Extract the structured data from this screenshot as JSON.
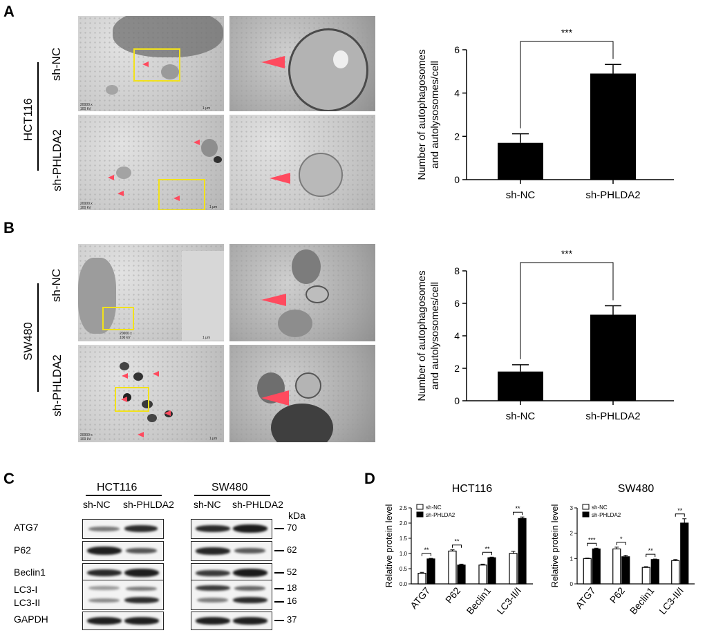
{
  "panels": {
    "a": "A",
    "b": "B",
    "c": "C",
    "d": "D"
  },
  "panel_a": {
    "cell_line": "HCT116",
    "row_labels": [
      "sh-NC",
      "sh-PHLDA2"
    ],
    "scale_text": [
      "20000 x\n100 kV",
      "1 μm"
    ],
    "chart_data": {
      "type": "bar",
      "categories": [
        "sh-NC",
        "sh-PHLDA2"
      ],
      "values": [
        1.7,
        4.9
      ],
      "errors": [
        0.42,
        0.42
      ],
      "ylabel": "Number of autophagosomes\nand autolysosomes/cell",
      "ylabel_lines": [
        "Number of autophagosomes",
        "and autolysosomes/cell"
      ],
      "ylim": [
        0,
        6
      ],
      "yticks": [
        0,
        2,
        4,
        6
      ],
      "significance": "***",
      "bar_color": "#000000"
    }
  },
  "panel_b": {
    "cell_line": "SW480",
    "row_labels": [
      "sh-NC",
      "sh-PHLDA2"
    ],
    "scale_text": [
      "20000 x\n100 kV",
      "1 μm"
    ],
    "chart_data": {
      "type": "bar",
      "categories": [
        "sh-NC",
        "sh-PHLDA2"
      ],
      "values": [
        1.8,
        5.3
      ],
      "errors": [
        0.42,
        0.55
      ],
      "ylabel": "Number of autophagosomes\nand autolysosomes/cell",
      "ylabel_lines": [
        "Number of autophagosomes",
        "and autolysosomes/cell"
      ],
      "ylim": [
        0,
        8
      ],
      "yticks": [
        0,
        2,
        4,
        6,
        8
      ],
      "significance": "***",
      "bar_color": "#000000"
    }
  },
  "panel_c": {
    "groups": [
      {
        "title": "HCT116",
        "lanes": [
          "sh-NC",
          "sh-PHLDA2"
        ]
      },
      {
        "title": "SW480",
        "lanes": [
          "sh-NC",
          "sh-PHLDA2"
        ]
      }
    ],
    "kda_label": "kDa",
    "rows": [
      {
        "label": "ATG7",
        "kda": [
          "70"
        ]
      },
      {
        "label": "P62",
        "kda": [
          "62"
        ]
      },
      {
        "label": "Beclin1",
        "kda": [
          "52"
        ]
      },
      {
        "label": "LC3-I",
        "kda": [
          "18"
        ]
      },
      {
        "label": "LC3-II",
        "kda": [
          "16"
        ]
      },
      {
        "label": "GAPDH",
        "kda": [
          "37"
        ]
      }
    ]
  },
  "panel_d": {
    "chart_data": [
      {
        "type": "bar",
        "title": "HCT116",
        "categories": [
          "ATG7",
          "P62",
          "Beclin1",
          "LC3-II/I"
        ],
        "series": [
          {
            "name": "sh-NC",
            "values": [
              0.35,
              1.08,
              0.62,
              1.0
            ],
            "errors": [
              0.03,
              0.04,
              0.03,
              0.07
            ],
            "fill": "#ffffff"
          },
          {
            "name": "sh-PHLDA2",
            "values": [
              0.82,
              0.62,
              0.86,
              2.15
            ],
            "errors": [
              0.02,
              0.03,
              0.02,
              0.05
            ],
            "fill": "#000000"
          }
        ],
        "significance": [
          "**",
          "**",
          "**",
          "**"
        ],
        "ylabel": "Relative protein level",
        "ylim": [
          0,
          2.5
        ],
        "yticks": [
          "0.0",
          "0.5",
          "1.0",
          "1.5",
          "2.0",
          "2.5"
        ],
        "legend": "top-left"
      },
      {
        "type": "bar",
        "title": "SW480",
        "categories": [
          "ATG7",
          "P62",
          "Beclin1",
          "LC3-II/I"
        ],
        "series": [
          {
            "name": "sh-NC",
            "values": [
              1.0,
              1.38,
              0.65,
              0.92
            ],
            "errors": [
              0.02,
              0.07,
              0.03,
              0.04
            ],
            "fill": "#ffffff"
          },
          {
            "name": "sh-PHLDA2",
            "values": [
              1.38,
              1.07,
              0.96,
              2.4
            ],
            "errors": [
              0.03,
              0.06,
              0.02,
              0.17
            ],
            "fill": "#000000"
          }
        ],
        "significance": [
          "***",
          "*",
          "**",
          "**"
        ],
        "ylabel": "Relative protein level",
        "ylim": [
          0,
          3
        ],
        "yticks": [
          "0",
          "1",
          "2",
          "3"
        ],
        "legend": "top-left"
      }
    ]
  }
}
